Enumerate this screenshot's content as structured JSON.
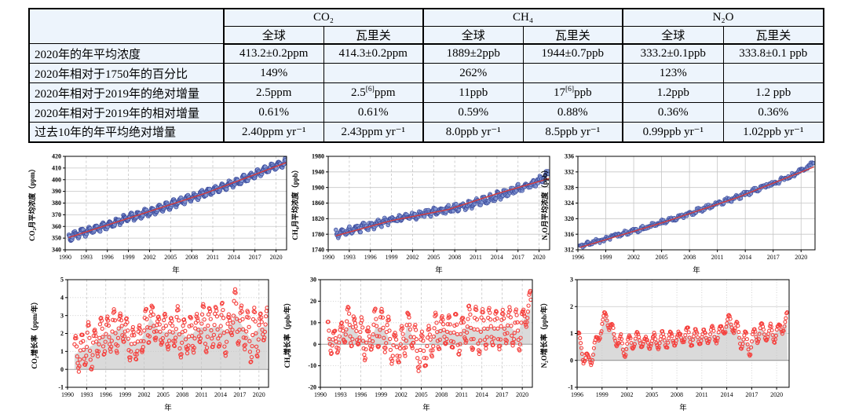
{
  "colors": {
    "table_bg": "#edf4fc",
    "point_fill": "#8296d3",
    "point_stroke": "#3e4d9d",
    "trend_line": "#d63c3c",
    "rate_circle": "#f5403d",
    "rate_area": "#dadada",
    "grid": "#c6c6c6",
    "zero_line": "#8d8d8d",
    "axis": "#000000"
  },
  "table": {
    "corner": "",
    "groups": [
      "CO₂",
      "CH₄",
      "N₂O"
    ],
    "sub_headers": [
      "全球",
      "瓦里关"
    ],
    "rows": [
      {
        "label": "2020年的年平均浓度",
        "cells": [
          "413.2±0.2ppm",
          "414.3±0.2ppm",
          "1889±2ppb",
          "1944±0.7ppb",
          "333.2±0.1ppb",
          "333.8±0.1 ppb"
        ]
      },
      {
        "label": "2020年相对于1750年的百分比",
        "cells": [
          "149%",
          "",
          "262%",
          "",
          "123%",
          ""
        ]
      },
      {
        "label": "2020年相对于2019年的绝对增量",
        "cells": [
          "2.5ppm",
          "2.5[6]ppm",
          "11ppb",
          "17[6]ppb",
          "1.2ppb",
          "1.2 ppb"
        ]
      },
      {
        "label": "2020年相对于2019年的相对增量",
        "cells": [
          "0.61%",
          "0.61%",
          "0.59%",
          "0.88%",
          "0.36%",
          "0.36%"
        ]
      },
      {
        "label": "过去10年的年平均绝对增量",
        "cells": [
          "2.40ppm yr⁻¹",
          "2.43ppm yr⁻¹",
          "8.0ppb yr⁻¹",
          "8.5ppb yr⁻¹",
          "0.99ppb yr⁻¹",
          "1.02ppb yr⁻¹"
        ]
      }
    ]
  },
  "chart_data": [
    {
      "id": "co2_monthly",
      "name": "co2-concentration-chart",
      "type": "conc",
      "ylabel": "CO₂月平均浓度（ppm）",
      "xlabel": "年",
      "x": {
        "min": 1990,
        "max": 2021.5,
        "ticks": [
          1990,
          1993,
          1996,
          1999,
          2002,
          2005,
          2008,
          2011,
          2014,
          2017,
          2020
        ]
      },
      "y": {
        "min": 340,
        "max": 420,
        "ticks": [
          340,
          350,
          360,
          370,
          380,
          390,
          400,
          410,
          420
        ]
      },
      "grid": {
        "v": "dash",
        "h": "solid"
      },
      "legend": "none",
      "series": {
        "start": 1990.55,
        "end": 2021.4,
        "step": 0.0833,
        "amp": 2.6,
        "jitter": 1.3,
        "phase": -0.12,
        "seed": 3,
        "r": 2.6,
        "annual": [
          [
            1990.5,
            350.8
          ],
          [
            1992,
            354.2
          ],
          [
            1994,
            357.2
          ],
          [
            1996,
            361.2
          ],
          [
            1998,
            365.5
          ],
          [
            2000,
            369
          ],
          [
            2002,
            372.6
          ],
          [
            2004,
            376.6
          ],
          [
            2006,
            380.6
          ],
          [
            2008,
            384.6
          ],
          [
            2010,
            388.6
          ],
          [
            2012,
            392.6
          ],
          [
            2014,
            396.8
          ],
          [
            2016,
            402
          ],
          [
            2018,
            407
          ],
          [
            2020,
            411.8
          ],
          [
            2021.4,
            414.8
          ]
        ],
        "trend": [
          [
            1990.5,
            350.5
          ],
          [
            2000,
            369
          ],
          [
            2010,
            388.5
          ],
          [
            2021.4,
            414.5
          ]
        ]
      }
    },
    {
      "id": "ch4_monthly",
      "name": "ch4-concentration-chart",
      "type": "conc",
      "ylabel": "CH₄月平均浓度（ppb）",
      "xlabel": "年",
      "x": {
        "min": 1990,
        "max": 2021.5,
        "ticks": [
          1990,
          1993,
          1996,
          1999,
          2002,
          2005,
          2008,
          2011,
          2014,
          2017,
          2020
        ]
      },
      "y": {
        "min": 1740,
        "max": 1980,
        "ticks": [
          1740,
          1780,
          1820,
          1860,
          1900,
          1940,
          1980
        ]
      },
      "grid": {
        "v": "dash",
        "h": "solid"
      },
      "legend": "none",
      "series": {
        "start": 1991.1,
        "end": 2021.4,
        "step": 0.0833,
        "amp": 5.5,
        "jitter": 7,
        "phase": 0.2,
        "seed": 7,
        "r": 2.4,
        "annual": [
          [
            1991.1,
            1779
          ],
          [
            1993,
            1789
          ],
          [
            1995,
            1799
          ],
          [
            1997,
            1806
          ],
          [
            1999,
            1816
          ],
          [
            2001,
            1822
          ],
          [
            2003,
            1830
          ],
          [
            2005,
            1837
          ],
          [
            2007,
            1844
          ],
          [
            2009,
            1852
          ],
          [
            2011,
            1859
          ],
          [
            2013,
            1871
          ],
          [
            2015,
            1884
          ],
          [
            2017,
            1897
          ],
          [
            2019,
            1909
          ],
          [
            2020.5,
            1921
          ],
          [
            2021.4,
            1940
          ]
        ],
        "trend": [
          [
            1991.1,
            1776
          ],
          [
            1999,
            1815
          ],
          [
            2007,
            1843
          ],
          [
            2014,
            1884
          ],
          [
            2021.4,
            1923
          ]
        ]
      }
    },
    {
      "id": "n2o_monthly",
      "name": "n2o-concentration-chart",
      "type": "conc",
      "ylabel": "N₂O月平均浓度（ppb）",
      "xlabel": "年",
      "x": {
        "min": 1996,
        "max": 2021.5,
        "ticks": [
          1996,
          1999,
          2002,
          2005,
          2008,
          2011,
          2014,
          2017,
          2020
        ]
      },
      "y": {
        "min": 312,
        "max": 336,
        "ticks": [
          312,
          316,
          320,
          324,
          328,
          332,
          336
        ]
      },
      "grid": {
        "v": "solid",
        "h": "solid"
      },
      "legend": "none",
      "series": {
        "start": 1996.2,
        "end": 2021.4,
        "step": 0.0833,
        "amp": 0.3,
        "jitter": 0.5,
        "phase": 0.3,
        "seed": 11,
        "r": 2.2,
        "annual": [
          [
            1996.2,
            313.3
          ],
          [
            1997,
            313.5
          ],
          [
            1998,
            314.1
          ],
          [
            1999,
            314.6
          ],
          [
            1999.8,
            315.9
          ],
          [
            2001,
            316.3
          ],
          [
            2002,
            316.9
          ],
          [
            2003,
            317.5
          ],
          [
            2004,
            318.2
          ],
          [
            2005,
            319
          ],
          [
            2006,
            319.8
          ],
          [
            2007,
            320.5
          ],
          [
            2008,
            321.3
          ],
          [
            2009,
            322.2
          ],
          [
            2010,
            323
          ],
          [
            2011,
            323.8
          ],
          [
            2012,
            324.6
          ],
          [
            2013,
            325.4
          ],
          [
            2014,
            326.3
          ],
          [
            2015,
            327.2
          ],
          [
            2016,
            328.3
          ],
          [
            2017,
            329
          ],
          [
            2018,
            330
          ],
          [
            2019,
            331
          ],
          [
            2020,
            332.3
          ],
          [
            2021.4,
            334.2
          ]
        ],
        "trend": [
          [
            1996.2,
            312.6
          ],
          [
            2005,
            318.9
          ],
          [
            2013,
            325.3
          ],
          [
            2021.4,
            333.3
          ]
        ]
      }
    },
    {
      "id": "co2_rate",
      "name": "co2-growth-rate-chart",
      "type": "rate",
      "ylabel": "CO₂增长率（ppm/年）",
      "xlabel": "年",
      "x": {
        "min": 1990,
        "max": 2021.5,
        "ticks": [
          1990,
          1993,
          1996,
          1999,
          2002,
          2005,
          2008,
          2011,
          2014,
          2017,
          2020
        ]
      },
      "y": {
        "min": -1,
        "max": 5,
        "ticks": [
          -1,
          0,
          1,
          2,
          3,
          4,
          5
        ]
      },
      "grid": {
        "v": "dash",
        "h": "dot"
      },
      "legend": "none",
      "series": {
        "start": 1991.1,
        "end": 2021.3,
        "step": 0.0833,
        "amp": 1.15,
        "jitter": 0.1,
        "phase": 0,
        "seed": 17,
        "r": 2.1,
        "annual": [
          [
            1991.1,
            0.85
          ],
          [
            1992.5,
            1.1
          ],
          [
            1994,
            1.35
          ],
          [
            1995.5,
            1.9
          ],
          [
            1997,
            2.0
          ],
          [
            1998.5,
            2.45
          ],
          [
            2000,
            1.35
          ],
          [
            2001.5,
            1.6
          ],
          [
            2003,
            2.85
          ],
          [
            2004.5,
            2.1
          ],
          [
            2006,
            2.1
          ],
          [
            2007.5,
            2.1
          ],
          [
            2009,
            1.75
          ],
          [
            2010.5,
            2.35
          ],
          [
            2012,
            2.3
          ],
          [
            2013.5,
            2.4
          ],
          [
            2015,
            2.1
          ],
          [
            2016.3,
            3.1
          ],
          [
            2017.5,
            2.35
          ],
          [
            2018.7,
            1.7
          ],
          [
            2020,
            2.3
          ],
          [
            2021.3,
            2.45
          ]
        ]
      }
    },
    {
      "id": "ch4_rate",
      "name": "ch4-growth-rate-chart",
      "type": "rate",
      "ylabel": "CH₄增长率（ppb/年）",
      "xlabel": "年",
      "x": {
        "min": 1990,
        "max": 2021.5,
        "ticks": [
          1990,
          1993,
          1996,
          1999,
          2002,
          2005,
          2008,
          2011,
          2014,
          2017,
          2020
        ]
      },
      "y": {
        "min": -20,
        "max": 30,
        "ticks": [
          -20,
          -10,
          0,
          10,
          20,
          30
        ]
      },
      "grid": {
        "v": "dash",
        "h": "dot"
      },
      "legend": "none",
      "series": {
        "start": 1991.1,
        "end": 2021.3,
        "step": 0.0833,
        "amp": 8,
        "jitter": 0.9,
        "phase": 0.15,
        "seed": 23,
        "r": 2.1,
        "annual": [
          [
            1991.1,
            4
          ],
          [
            1992.3,
            0.5
          ],
          [
            1993.5,
            6
          ],
          [
            1994.5,
            9
          ],
          [
            1996,
            3
          ],
          [
            1997.2,
            1
          ],
          [
            1998.3,
            8
          ],
          [
            1999.5,
            7
          ],
          [
            2000.8,
            -1
          ],
          [
            2002,
            -2.5
          ],
          [
            2003,
            10
          ],
          [
            2004.2,
            -2
          ],
          [
            2005.3,
            -3.5
          ],
          [
            2006.5,
            2
          ],
          [
            2007.5,
            7
          ],
          [
            2009,
            6
          ],
          [
            2010.5,
            4.5
          ],
          [
            2012,
            8.5
          ],
          [
            2013.5,
            6
          ],
          [
            2015,
            8
          ],
          [
            2016.5,
            7
          ],
          [
            2018,
            9
          ],
          [
            2019.2,
            5
          ],
          [
            2020.3,
            12
          ],
          [
            2021.3,
            17
          ]
        ]
      }
    },
    {
      "id": "n2o_rate",
      "name": "n2o-growth-rate-chart",
      "type": "rate",
      "ylabel": "N₂O增长率（ppb/年）",
      "xlabel": "年",
      "x": {
        "min": 1996,
        "max": 2021.5,
        "ticks": [
          1996,
          1999,
          2002,
          2005,
          2008,
          2011,
          2014,
          2017,
          2020
        ]
      },
      "y": {
        "min": -1,
        "max": 3,
        "ticks": [
          -1,
          0,
          1,
          2,
          3
        ]
      },
      "grid": {
        "v": "dot",
        "h": "solid"
      },
      "legend": "none",
      "series": {
        "start": 1996.1,
        "end": 2021.3,
        "step": 0.0833,
        "amp": 0.32,
        "jitter": 0.05,
        "phase": 0,
        "seed": 29,
        "r": 2.0,
        "annual": [
          [
            1996.1,
            0.8
          ],
          [
            1997.3,
            -0.15
          ],
          [
            1998.3,
            0.65
          ],
          [
            1999.5,
            1.7
          ],
          [
            2000.6,
            0.8
          ],
          [
            2001.6,
            0.45
          ],
          [
            2003,
            0.8
          ],
          [
            2004.5,
            0.65
          ],
          [
            2006,
            0.75
          ],
          [
            2007.5,
            0.8
          ],
          [
            2009,
            0.9
          ],
          [
            2010.5,
            0.85
          ],
          [
            2012,
            0.9
          ],
          [
            2013.2,
            1.0
          ],
          [
            2014.3,
            1.5
          ],
          [
            2015.5,
            0.9
          ],
          [
            2016.8,
            0.55
          ],
          [
            2018,
            1.2
          ],
          [
            2019,
            0.9
          ],
          [
            2020.2,
            1.1
          ],
          [
            2021.3,
            1.45
          ]
        ]
      }
    }
  ]
}
